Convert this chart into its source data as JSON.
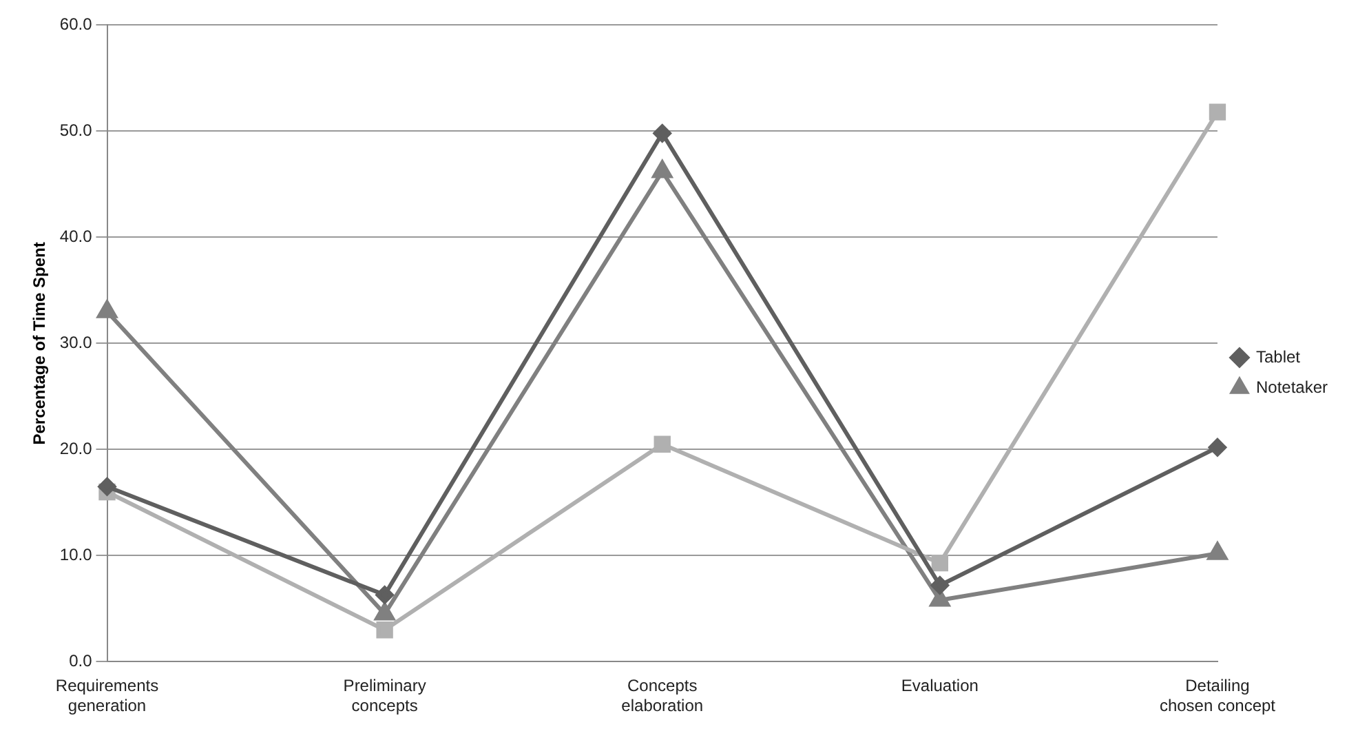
{
  "chart_data": {
    "type": "line",
    "ylabel": "Percentage of Time Spent",
    "categories": [
      "Requirements generation",
      "Preliminary concepts",
      "Concepts elaboration",
      "Evaluation",
      "Detailing chosen concept"
    ],
    "series": [
      {
        "name": "Tablet",
        "color": "#5f5f5f",
        "marker": "diamond",
        "values": [
          16.5,
          6.3,
          49.8,
          7.2,
          20.2
        ]
      },
      {
        "color": "#b0b0b0",
        "marker": "square",
        "values": [
          16.0,
          3.0,
          20.5,
          9.3,
          51.8
        ]
      },
      {
        "name": "Notetaker",
        "color": "#808080",
        "marker": "triangle",
        "values": [
          33.0,
          4.5,
          46.2,
          5.8,
          10.2
        ]
      }
    ],
    "ylim": [
      0,
      60
    ],
    "yticks": [
      {
        "value": 0,
        "label": "0.0"
      },
      {
        "value": 10,
        "label": "10.0"
      },
      {
        "value": 20,
        "label": "20.0"
      },
      {
        "value": 30,
        "label": "30.0"
      },
      {
        "value": 40,
        "label": "40.0"
      },
      {
        "value": 50,
        "label": "50.0"
      },
      {
        "value": 60,
        "label": "60.0"
      }
    ],
    "grid": "y",
    "legend": "right",
    "line_style": "solid"
  }
}
